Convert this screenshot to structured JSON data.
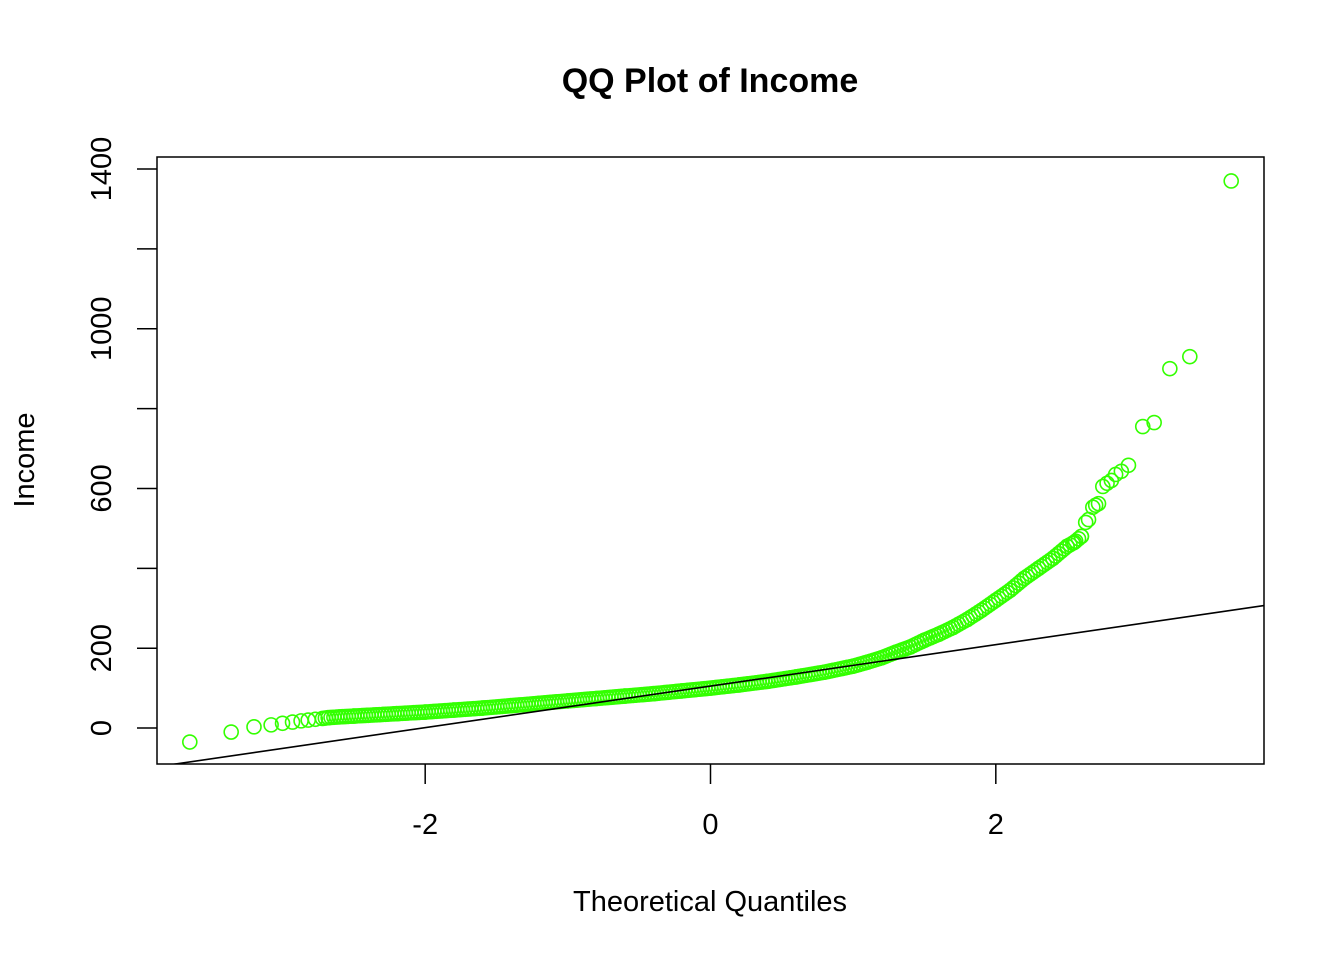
{
  "chart_data": {
    "type": "scatter",
    "title": "QQ Plot of Income",
    "xlabel": "Theoretical Quantiles",
    "ylabel": "Income",
    "xlim": [
      -3.88,
      3.88
    ],
    "ylim": [
      -90,
      1430
    ],
    "x_ticks": [
      -2,
      0,
      2
    ],
    "x_tick_labels": [
      "-2",
      "0",
      "2"
    ],
    "y_ticks": [
      0,
      200,
      400,
      600,
      800,
      1000,
      1200,
      1400
    ],
    "y_tick_labels": [
      "0",
      "200",
      "",
      "600",
      "",
      "1000",
      "",
      "1400"
    ],
    "grid": false,
    "legend": "none",
    "point_style": "open-circle",
    "point_color": "#33ff00",
    "line_color": "#000000",
    "reference_line": {
      "intercept": 105,
      "slope": 52
    },
    "series": [
      {
        "points_x": [
          -3.65,
          -3.36,
          -3.2,
          -3.08,
          -3.0,
          -2.93,
          -2.87,
          -2.82,
          -2.77,
          -2.72,
          -2.68,
          -2.6,
          -2.5,
          -2.4,
          -2.2,
          -2.0,
          -1.8,
          -1.6,
          -1.4,
          -1.2,
          -1.0,
          -0.8,
          -0.6,
          -0.4,
          -0.2,
          0.0,
          0.2,
          0.4,
          0.6,
          0.8,
          1.0,
          1.1,
          1.2,
          1.3,
          1.4,
          1.5,
          1.6,
          1.7,
          1.8,
          1.9,
          2.0,
          2.1,
          2.2,
          2.3,
          2.4,
          2.5,
          2.55,
          2.6,
          2.63,
          2.65,
          2.68,
          2.7,
          2.72,
          2.75,
          2.78,
          2.81,
          2.84,
          2.88,
          2.93,
          3.03,
          3.11,
          3.22,
          3.36,
          3.65
        ],
        "points_y": [
          -35,
          -10,
          3,
          8,
          12,
          15,
          18,
          20,
          22,
          24,
          26,
          28,
          30,
          32,
          36,
          40,
          45,
          50,
          56,
          62,
          68,
          74,
          80,
          86,
          93,
          100,
          108,
          117,
          128,
          140,
          155,
          165,
          176,
          190,
          203,
          220,
          235,
          252,
          272,
          295,
          320,
          345,
          375,
          400,
          425,
          455,
          465,
          480,
          515,
          522,
          553,
          558,
          562,
          605,
          613,
          620,
          635,
          643,
          658,
          755,
          765,
          900,
          930,
          1370
        ]
      }
    ]
  }
}
